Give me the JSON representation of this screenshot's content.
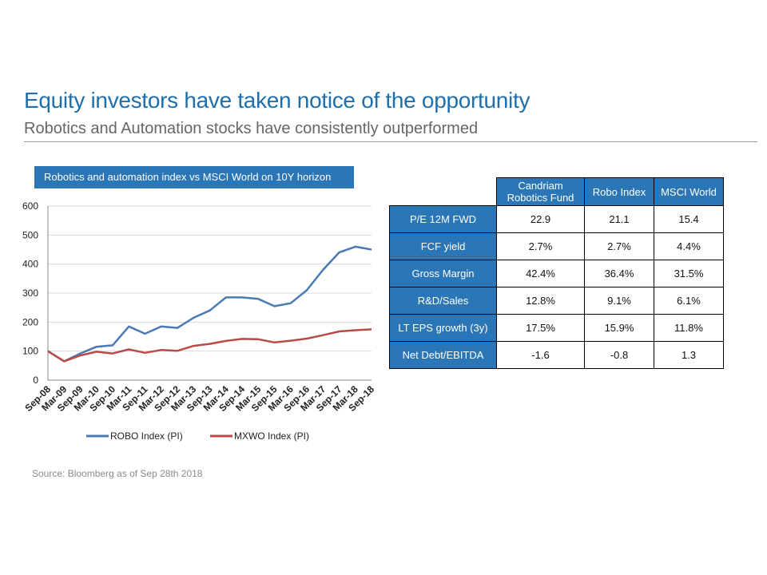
{
  "slide": {
    "title": "Equity investors have taken notice of the opportunity",
    "subtitle": "Robotics and Automation stocks have consistently outperformed",
    "source": "Source: Bloomberg as of Sep 28th 2018"
  },
  "chart_data": {
    "type": "line",
    "title": "Robotics and automation index vs MSCI World on 10Y horizon",
    "xlabel": "",
    "ylabel": "",
    "ylim": [
      0,
      600
    ],
    "yticks": [
      0,
      100,
      200,
      300,
      400,
      500,
      600
    ],
    "x": [
      "Sep-08",
      "Mar-09",
      "Sep-09",
      "Mar-10",
      "Sep-10",
      "Mar-11",
      "Sep-11",
      "Mar-12",
      "Sep-12",
      "Mar-13",
      "Sep-13",
      "Mar-14",
      "Sep-14",
      "Mar-15",
      "Sep-15",
      "Mar-16",
      "Sep-16",
      "Mar-17",
      "Sep-17",
      "Mar-18",
      "Sep-18"
    ],
    "grid": "horizontal",
    "legend_position": "bottom",
    "series": [
      {
        "name": "ROBO Index (PI)",
        "color": "#4a7ab5",
        "values": [
          100,
          65,
          92,
          115,
          120,
          185,
          160,
          185,
          180,
          215,
          240,
          285,
          285,
          280,
          255,
          265,
          310,
          380,
          440,
          460,
          450
        ]
      },
      {
        "name": "MXWO Index (PI)",
        "color": "#b94a48",
        "values": [
          100,
          65,
          85,
          98,
          92,
          106,
          94,
          104,
          101,
          118,
          125,
          135,
          142,
          141,
          130,
          136,
          143,
          155,
          168,
          172,
          175
        ]
      }
    ]
  },
  "table": {
    "columns": [
      "Candriam Robotics Fund",
      "Robo Index",
      "MSCI World"
    ],
    "rows": [
      {
        "label": "P/E 12M FWD",
        "values": [
          "22.9",
          "21.1",
          "15.4"
        ]
      },
      {
        "label": "FCF yield",
        "values": [
          "2.7%",
          "2.7%",
          "4.4%"
        ]
      },
      {
        "label": "Gross Margin",
        "values": [
          "42.4%",
          "36.4%",
          "31.5%"
        ]
      },
      {
        "label": "R&D/Sales",
        "values": [
          "12.8%",
          "9.1%",
          "6.1%"
        ]
      },
      {
        "label": "LT EPS growth (3y)",
        "values": [
          "17.5%",
          "15.9%",
          "11.8%"
        ]
      },
      {
        "label": "Net  Debt/EBITDA",
        "values": [
          "-1.6",
          "-0.8",
          "1.3"
        ]
      }
    ]
  }
}
